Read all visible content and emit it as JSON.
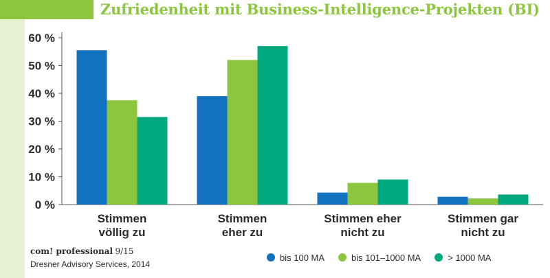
{
  "colors": {
    "title": "#8cc63f",
    "accent": "#8cc63f",
    "strip": "#e6f0d3",
    "axis": "#5a5a5a",
    "text": "#2b2b2b"
  },
  "source": {
    "publication": "com! professional",
    "issue": "9/15",
    "origin": "Dresner Advisory Services, 2014"
  },
  "chart_data": {
    "type": "bar",
    "title": "Zufriedenheit mit Business-Intelligence-Projekten (BI)",
    "categories": [
      [
        "Stimmen",
        "völlig zu"
      ],
      [
        "Stimmen",
        "eher zu"
      ],
      [
        "Stimmen eher",
        "nicht zu"
      ],
      [
        "Stimmen gar",
        "nicht zu"
      ]
    ],
    "series": [
      {
        "name": "bis 100 MA",
        "color": "#1272bf",
        "values": [
          55.5,
          39,
          4.3,
          2.8
        ]
      },
      {
        "name": "bis 101–1000 MA",
        "color": "#8cc63f",
        "values": [
          37.5,
          52,
          7.8,
          2.2
        ]
      },
      {
        "name": "> 1000 MA",
        "color": "#00a87e",
        "values": [
          31.5,
          57,
          9,
          3.6
        ]
      }
    ],
    "ylim": [
      0,
      60
    ],
    "yticks": [
      0,
      10,
      20,
      30,
      40,
      50,
      60
    ],
    "ytick_labels": [
      "0 %",
      "10 %",
      "20 %",
      "30 %",
      "40 %",
      "50 %",
      "60 %"
    ],
    "xlabel": "",
    "ylabel": "",
    "grid": false,
    "legend_position": "bottom-right"
  }
}
